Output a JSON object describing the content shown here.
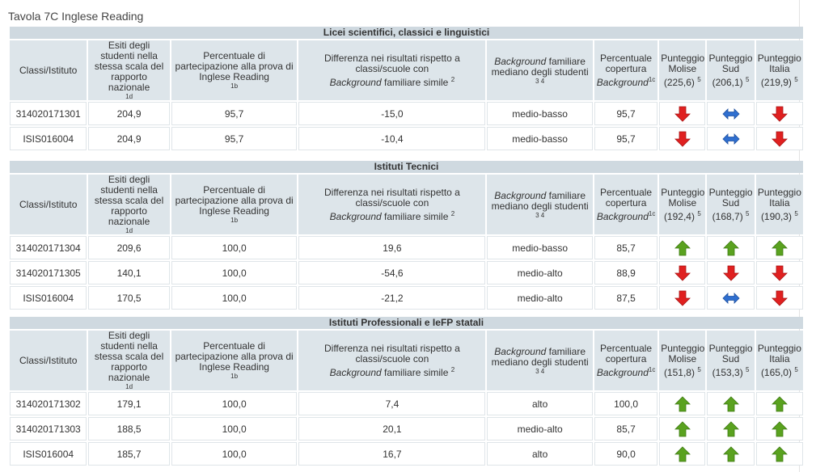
{
  "page_title": "Tavola 7C Inglese Reading",
  "column_headers": {
    "classi": "Classi/Istituto",
    "esiti": {
      "text": "Esiti degli studenti nella stessa scala del rapporto nazionale",
      "sup": "1d"
    },
    "percentuale_partecipazione": {
      "text": "Percentuale di partecipazione alla prova di Inglese Reading",
      "sup": "1b"
    },
    "differenza": {
      "line1": "Differenza nei risultati rispetto a classi/scuole con",
      "italic": "Background",
      "rest": " familiare simile",
      "sup": "2"
    },
    "background": {
      "italic": "Background",
      "rest": " familiare mediano degli studenti",
      "sup": "3 4"
    },
    "copertura": {
      "line1": "Percentuale copertura",
      "italic": "Background",
      "sup": "1c"
    },
    "punteggio_label": "Punteggio",
    "molise_label": "Molise",
    "sud_label": "Sud",
    "italia_label": "Italia",
    "punteggio_sup": "5"
  },
  "sections": [
    {
      "title": "Licei scientifici, classici e linguistici",
      "ref_molise": "(225,6)",
      "ref_sud": "(206,1)",
      "ref_italia": "(219,9)",
      "rows": [
        {
          "classe": "314020171301",
          "esiti": "204,9",
          "partecipazione": "95,7",
          "differenza": "-15,0",
          "background": "medio-basso",
          "copertura": "95,7",
          "molise": "down",
          "sud": "equal",
          "italia": "down"
        },
        {
          "classe": "ISIS016004",
          "esiti": "204,9",
          "partecipazione": "95,7",
          "differenza": "-10,4",
          "background": "medio-basso",
          "copertura": "95,7",
          "molise": "down",
          "sud": "equal",
          "italia": "down"
        }
      ]
    },
    {
      "title": "Istituti Tecnici",
      "ref_molise": "(192,4)",
      "ref_sud": "(168,7)",
      "ref_italia": "(190,3)",
      "rows": [
        {
          "classe": "314020171304",
          "esiti": "209,6",
          "partecipazione": "100,0",
          "differenza": "19,6",
          "background": "medio-basso",
          "copertura": "85,7",
          "molise": "up",
          "sud": "up",
          "italia": "up"
        },
        {
          "classe": "314020171305",
          "esiti": "140,1",
          "partecipazione": "100,0",
          "differenza": "-54,6",
          "background": "medio-alto",
          "copertura": "88,9",
          "molise": "down",
          "sud": "down",
          "italia": "down"
        },
        {
          "classe": "ISIS016004",
          "esiti": "170,5",
          "partecipazione": "100,0",
          "differenza": "-21,2",
          "background": "medio-alto",
          "copertura": "87,5",
          "molise": "down",
          "sud": "equal",
          "italia": "down"
        }
      ]
    },
    {
      "title": "Istituti Professionali e IeFP statali",
      "ref_molise": "(151,8)",
      "ref_sud": "(153,3)",
      "ref_italia": "(165,0)",
      "rows": [
        {
          "classe": "314020171302",
          "esiti": "179,1",
          "partecipazione": "100,0",
          "differenza": "7,4",
          "background": "alto",
          "copertura": "100,0",
          "molise": "up",
          "sud": "up",
          "italia": "up"
        },
        {
          "classe": "314020171303",
          "esiti": "188,5",
          "partecipazione": "100,0",
          "differenza": "20,1",
          "background": "medio-alto",
          "copertura": "85,7",
          "molise": "up",
          "sud": "up",
          "italia": "up"
        },
        {
          "classe": "ISIS016004",
          "esiti": "185,7",
          "partecipazione": "100,0",
          "differenza": "16,7",
          "background": "alto",
          "copertura": "90,0",
          "molise": "up",
          "sud": "up",
          "italia": "up"
        }
      ]
    }
  ],
  "icons": {
    "up": {
      "name": "green-up-arrow-icon",
      "color": "#5aa21f"
    },
    "down": {
      "name": "red-down-arrow-icon",
      "color": "#e02020"
    },
    "equal": {
      "name": "blue-double-arrow-icon",
      "color": "#2f6fd0"
    }
  }
}
